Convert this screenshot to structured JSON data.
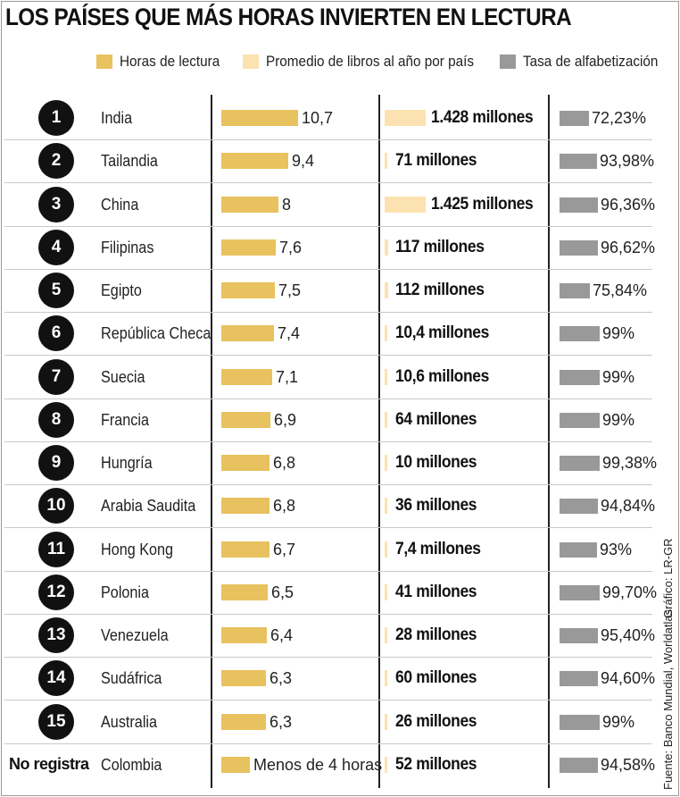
{
  "title": "LOS PAÍSES QUE MÁS HORAS INVIERTEN EN LECTURA",
  "legend": [
    {
      "label": "Horas de lectura",
      "color": "#e8c25f"
    },
    {
      "label": "Promedio de libros al año por país",
      "color": "#fbe2b0"
    },
    {
      "label": "Tasa de alfabetización",
      "color": "#999999"
    }
  ],
  "credits": {
    "graphic": "Gráfico: LR-GR",
    "source": "Fuente: Banco Mundial, Worldatlas"
  },
  "chart_data": {
    "type": "table",
    "title": "LOS PAÍSES QUE MÁS HORAS INVIERTEN EN LECTURA",
    "columns": [
      "Horas de lectura",
      "Promedio de libros al año por país",
      "Tasa de alfabetización"
    ],
    "rows": [
      {
        "rank": "1",
        "country": "India",
        "hours": 10.7,
        "hours_label": "10,7",
        "books": 1428,
        "books_label": "1.428 millones",
        "literacy": 72.23,
        "literacy_label": "72,23%"
      },
      {
        "rank": "2",
        "country": "Tailandia",
        "hours": 9.4,
        "hours_label": "9,4",
        "books": 71,
        "books_label": "71 millones",
        "literacy": 93.98,
        "literacy_label": "93,98%"
      },
      {
        "rank": "3",
        "country": "China",
        "hours": 8,
        "hours_label": "8",
        "books": 1425,
        "books_label": "1.425 millones",
        "literacy": 96.36,
        "literacy_label": "96,36%"
      },
      {
        "rank": "4",
        "country": "Filipinas",
        "hours": 7.6,
        "hours_label": "7,6",
        "books": 117,
        "books_label": "117 millones",
        "literacy": 96.62,
        "literacy_label": "96,62%"
      },
      {
        "rank": "5",
        "country": "Egipto",
        "hours": 7.5,
        "hours_label": "7,5",
        "books": 112,
        "books_label": "112 millones",
        "literacy": 75.84,
        "literacy_label": "75,84%"
      },
      {
        "rank": "6",
        "country": "República Checa",
        "hours": 7.4,
        "hours_label": "7,4",
        "books": 10.4,
        "books_label": "10,4 millones",
        "literacy": 99,
        "literacy_label": "99%"
      },
      {
        "rank": "7",
        "country": "Suecia",
        "hours": 7.1,
        "hours_label": "7,1",
        "books": 10.6,
        "books_label": "10,6 millones",
        "literacy": 99,
        "literacy_label": "99%"
      },
      {
        "rank": "8",
        "country": "Francia",
        "hours": 6.9,
        "hours_label": "6,9",
        "books": 64,
        "books_label": "64 millones",
        "literacy": 99,
        "literacy_label": "99%"
      },
      {
        "rank": "9",
        "country": "Hungría",
        "hours": 6.8,
        "hours_label": "6,8",
        "books": 10,
        "books_label": "10 millones",
        "literacy": 99.38,
        "literacy_label": "99,38%"
      },
      {
        "rank": "10",
        "country": "Arabia Saudita",
        "hours": 6.8,
        "hours_label": "6,8",
        "books": 36,
        "books_label": "36 millones",
        "literacy": 94.84,
        "literacy_label": "94,84%"
      },
      {
        "rank": "11",
        "country": "Hong Kong",
        "hours": 6.7,
        "hours_label": "6,7",
        "books": 7.4,
        "books_label": "7,4 millones",
        "literacy": 93,
        "literacy_label": "93%"
      },
      {
        "rank": "12",
        "country": "Polonia",
        "hours": 6.5,
        "hours_label": "6,5",
        "books": 41,
        "books_label": "41 millones",
        "literacy": 99.7,
        "literacy_label": "99,70%"
      },
      {
        "rank": "13",
        "country": "Venezuela",
        "hours": 6.4,
        "hours_label": "6,4",
        "books": 28,
        "books_label": "28 millones",
        "literacy": 95.4,
        "literacy_label": "95,40%"
      },
      {
        "rank": "14",
        "country": "Sudáfrica",
        "hours": 6.3,
        "hours_label": "6,3",
        "books": 60,
        "books_label": "60 millones",
        "literacy": 94.6,
        "literacy_label": "94,60%"
      },
      {
        "rank": "15",
        "country": "Australia",
        "hours": 6.3,
        "hours_label": "6,3",
        "books": 26,
        "books_label": "26 millones",
        "literacy": 99,
        "literacy_label": "99%"
      },
      {
        "rank": "No registra",
        "country": "Colombia",
        "hours": 4,
        "hours_label": "Menos de 4 horas",
        "books": 52,
        "books_label": "52 millones",
        "literacy": 94.58,
        "literacy_label": "94,58%"
      }
    ]
  }
}
